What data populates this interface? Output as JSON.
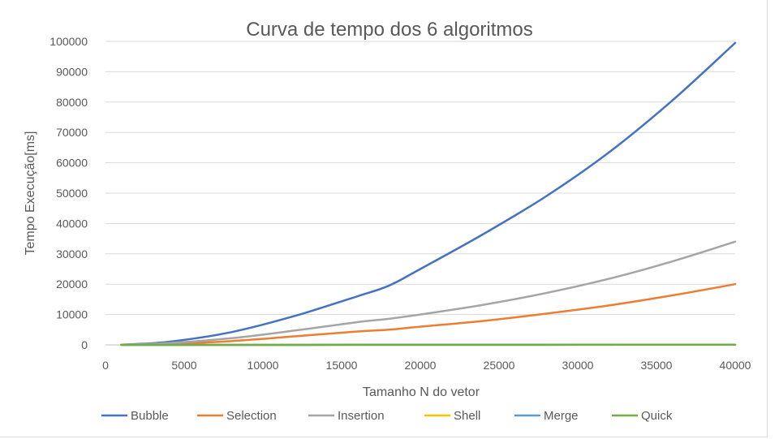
{
  "chart_data": {
    "type": "line",
    "title": "Curva de tempo dos 6 algoritmos",
    "xlabel": "Tamanho N do vetor",
    "ylabel": "Tempo Execução[ms]",
    "xlim": [
      0,
      40000
    ],
    "ylim": [
      0,
      100000
    ],
    "x_ticks": [
      0,
      5000,
      10000,
      15000,
      20000,
      25000,
      30000,
      35000,
      40000
    ],
    "y_ticks": [
      0,
      10000,
      20000,
      30000,
      40000,
      50000,
      60000,
      70000,
      80000,
      90000,
      100000
    ],
    "grid": true,
    "legend_position": "bottom",
    "x": [
      1000,
      4000,
      8000,
      12000,
      16000,
      18000,
      20000,
      24000,
      28000,
      32000,
      36000,
      40000
    ],
    "series": [
      {
        "name": "Bubble",
        "color": "#4472C4",
        "values": [
          60,
          1000,
          4200,
          9500,
          16000,
          19500,
          25000,
          36500,
          49000,
          63500,
          80500,
          99500
        ]
      },
      {
        "name": "Selection",
        "color": "#ED7D31",
        "values": [
          20,
          300,
          1250,
          2800,
          4400,
          5000,
          6000,
          7900,
          10300,
          13000,
          16300,
          20000
        ]
      },
      {
        "name": "Insertion",
        "color": "#A5A5A5",
        "values": [
          35,
          600,
          2200,
          4700,
          7500,
          8600,
          10000,
          13200,
          17100,
          21800,
          27500,
          34000
        ]
      },
      {
        "name": "Shell",
        "color": "#FFC000",
        "values": [
          0,
          5,
          10,
          15,
          20,
          25,
          30,
          40,
          50,
          55,
          65,
          75
        ]
      },
      {
        "name": "Merge",
        "color": "#5B9BD5",
        "values": [
          0,
          5,
          10,
          15,
          20,
          22,
          25,
          35,
          40,
          50,
          55,
          60
        ]
      },
      {
        "name": "Quick",
        "color": "#70AD47",
        "values": [
          0,
          5,
          10,
          15,
          20,
          25,
          30,
          40,
          50,
          55,
          65,
          75
        ]
      }
    ]
  }
}
